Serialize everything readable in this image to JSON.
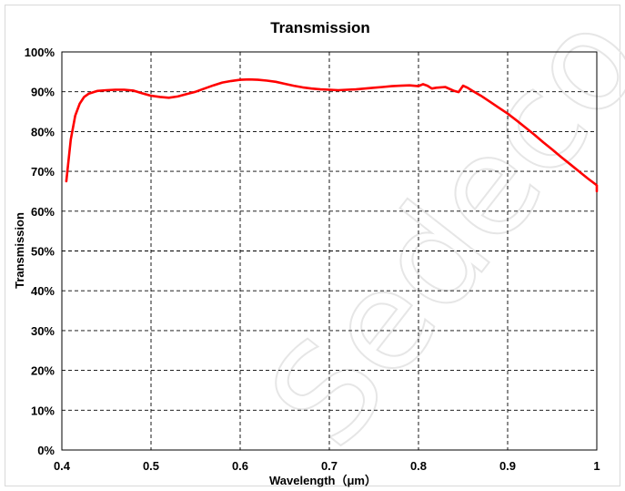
{
  "chart_data": {
    "type": "line",
    "title": "Transmission",
    "xlabel": "Wavelength（μm）",
    "ylabel": "Transmission",
    "xlim": [
      0.4,
      1.0
    ],
    "ylim": [
      0,
      100
    ],
    "grid": true,
    "grid_style": "dashed",
    "x_ticks": [
      "0.4",
      "0.5",
      "0.6",
      "0.7",
      "0.8",
      "0.9",
      "1"
    ],
    "y_ticks": [
      "0%",
      "10%",
      "20%",
      "30%",
      "40%",
      "50%",
      "60%",
      "70%",
      "80%",
      "90%",
      "100%"
    ],
    "series": [
      {
        "color": "#ff0000",
        "x": [
          0.405,
          0.41,
          0.415,
          0.42,
          0.425,
          0.43,
          0.44,
          0.45,
          0.46,
          0.47,
          0.48,
          0.49,
          0.5,
          0.51,
          0.52,
          0.53,
          0.54,
          0.55,
          0.56,
          0.57,
          0.58,
          0.59,
          0.6,
          0.61,
          0.62,
          0.63,
          0.64,
          0.65,
          0.66,
          0.67,
          0.68,
          0.69,
          0.7,
          0.71,
          0.72,
          0.73,
          0.74,
          0.75,
          0.76,
          0.77,
          0.78,
          0.79,
          0.8,
          0.805,
          0.81,
          0.815,
          0.82,
          0.83,
          0.84,
          0.845,
          0.85,
          0.855,
          0.86,
          0.87,
          0.88,
          0.89,
          0.9,
          0.91,
          0.92,
          0.93,
          0.94,
          0.95,
          0.96,
          0.97,
          0.98,
          0.99,
          1.0,
          1.015
        ],
        "y": [
          67.5,
          78.0,
          84.0,
          87.0,
          88.7,
          89.5,
          90.2,
          90.4,
          90.5,
          90.5,
          90.3,
          89.6,
          89.0,
          88.7,
          88.5,
          88.8,
          89.4,
          90.0,
          90.8,
          91.6,
          92.3,
          92.7,
          93.0,
          93.1,
          93.0,
          92.8,
          92.5,
          92.0,
          91.5,
          91.1,
          90.8,
          90.6,
          90.5,
          90.4,
          90.5,
          90.6,
          90.8,
          91.0,
          91.2,
          91.4,
          91.5,
          91.6,
          91.4,
          91.9,
          91.5,
          90.8,
          91.0,
          91.2,
          90.2,
          89.9,
          91.5,
          91.0,
          90.3,
          89.0,
          87.5,
          86.0,
          84.5,
          82.8,
          81.0,
          79.2,
          77.3,
          75.5,
          73.6,
          71.8,
          70.0,
          68.2,
          66.5,
          65.0
        ]
      }
    ]
  },
  "watermark": "Sedeco"
}
